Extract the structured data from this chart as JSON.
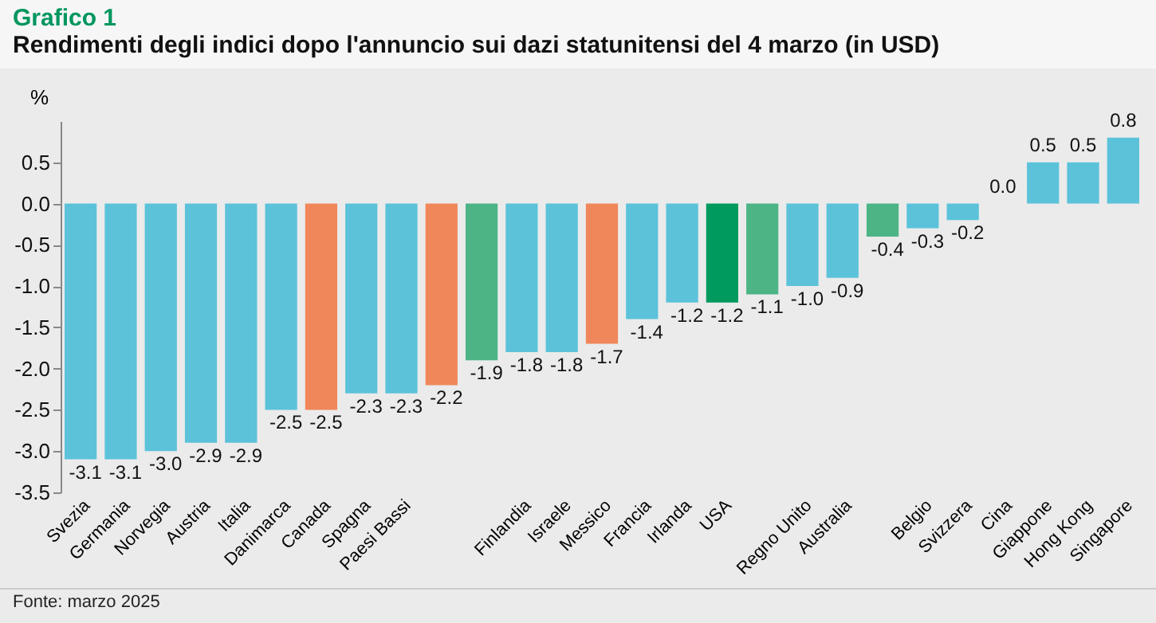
{
  "chart_data": {
    "type": "bar",
    "title": "Grafico 1",
    "subtitle": "Rendimenti degli indici dopo l'annuncio sui dazi statunitensi del 4 marzo (in USD)",
    "ylabel": "%",
    "categories": [
      "Svezia",
      "Germania",
      "Norvegia",
      "Austria",
      "Italia",
      "Danimarca",
      "Canada",
      "Spagna",
      "Paesi Bassi",
      null,
      null,
      "Finlandia",
      "Israele",
      "Messico",
      "Francia",
      "Irlanda",
      "USA",
      null,
      "Regno Unito",
      "Australia",
      null,
      "Belgio",
      "Svizzera",
      "Cina",
      "Giappone",
      "Hong Kong",
      "Singapore"
    ],
    "values": [
      -3.1,
      -3.1,
      -3.0,
      -2.9,
      -2.9,
      -2.5,
      -2.5,
      -2.3,
      -2.3,
      -2.2,
      -1.9,
      -1.8,
      -1.8,
      -1.7,
      -1.4,
      -1.2,
      -1.2,
      -1.1,
      -1.0,
      -0.9,
      -0.4,
      -0.3,
      -0.2,
      0.0,
      0.5,
      0.5,
      0.8
    ],
    "colors": [
      "#5bc2da",
      "#5bc2da",
      "#5bc2da",
      "#5bc2da",
      "#5bc2da",
      "#5bc2da",
      "#f0875a",
      "#5bc2da",
      "#5bc2da",
      "#f0875a",
      "#4db486",
      "#5bc2da",
      "#5bc2da",
      "#f0875a",
      "#5bc2da",
      "#5bc2da",
      "#009a5e",
      "#4db486",
      "#5bc2da",
      "#5bc2da",
      "#4db486",
      "#5bc2da",
      "#5bc2da",
      "#5bc2da",
      "#5bc2da",
      "#5bc2da",
      "#5bc2da"
    ],
    "ylim": [
      -3.5,
      1.0
    ],
    "yticks": [
      -3.5,
      {
        "value": -3,
        "label": "-3.0"
      },
      -2.5,
      {
        "value": -2,
        "label": "-2.0"
      },
      -1.5,
      {
        "value": -1,
        "label": "-1.0"
      },
      -0.5,
      {
        "value": 0,
        "label": "0.0"
      },
      0.5
    ],
    "value_labels": [
      "-3.1",
      "-3.1",
      "-3.0",
      "-2.9",
      "-2.9",
      "-2.5",
      "-2.5",
      "-2.3",
      "-2.3",
      "-2.2",
      "-1.9",
      "-1.8",
      "-1.8",
      "-1.7",
      "-1.4",
      "-1.2",
      "-1.2",
      "-1.1",
      "-1.0",
      "-0.9",
      "-0.4",
      "-0.3",
      "-0.2",
      "0.0",
      "0.5",
      "0.5",
      "0.8"
    ],
    "annotations": [
      "Fonte: marzo 2025"
    ]
  }
}
